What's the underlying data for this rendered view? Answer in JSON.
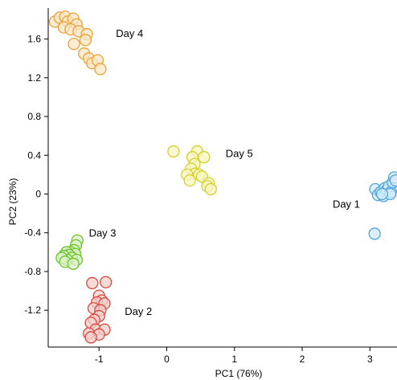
{
  "chart_data": {
    "type": "scatter",
    "title": "",
    "xlabel": "PC1 (76%)",
    "ylabel": "PC2 (23%)",
    "xlim": [
      -1.75,
      3.4
    ],
    "ylim": [
      -1.58,
      1.92
    ],
    "xticks": [
      -1,
      0,
      1,
      2,
      3
    ],
    "yticks": [
      1.6,
      1.2,
      0.8,
      0.4,
      0,
      -0.4,
      -0.8,
      -1.2
    ],
    "grid": false,
    "series": [
      {
        "name": "Day 4",
        "color": "#E8A33A",
        "fill": "#FBE6C4",
        "points": [
          [
            -1.65,
            1.78
          ],
          [
            -1.58,
            1.82
          ],
          [
            -1.5,
            1.83
          ],
          [
            -1.46,
            1.78
          ],
          [
            -1.38,
            1.81
          ],
          [
            -1.33,
            1.75
          ],
          [
            -1.52,
            1.72
          ],
          [
            -1.42,
            1.7
          ],
          [
            -1.3,
            1.68
          ],
          [
            -1.18,
            1.65
          ],
          [
            -1.2,
            1.59
          ],
          [
            -1.37,
            1.55
          ],
          [
            -1.22,
            1.45
          ],
          [
            -1.15,
            1.4
          ],
          [
            -1.1,
            1.35
          ],
          [
            -1.02,
            1.38
          ],
          [
            -0.98,
            1.29
          ]
        ]
      },
      {
        "name": "Day 5",
        "color": "#D4D030",
        "fill": "#F7F5C2",
        "points": [
          [
            0.1,
            0.44
          ],
          [
            0.45,
            0.44
          ],
          [
            0.55,
            0.38
          ],
          [
            0.38,
            0.38
          ],
          [
            0.41,
            0.31
          ],
          [
            0.36,
            0.26
          ],
          [
            0.42,
            0.21
          ],
          [
            0.3,
            0.2
          ],
          [
            0.48,
            0.2
          ],
          [
            0.52,
            0.18
          ],
          [
            0.34,
            0.14
          ],
          [
            0.62,
            0.11
          ],
          [
            0.6,
            0.08
          ],
          [
            0.65,
            0.05
          ]
        ]
      },
      {
        "name": "Day 1",
        "color": "#4FA6DE",
        "fill": "#D3EAF8",
        "points": [
          [
            3.07,
            -0.41
          ],
          [
            3.08,
            0.05
          ],
          [
            3.12,
            -0.01
          ],
          [
            3.16,
            0.02
          ],
          [
            3.2,
            -0.02
          ],
          [
            3.22,
            0.06
          ],
          [
            3.25,
            0.04
          ],
          [
            3.28,
            0.08
          ],
          [
            3.31,
            0.02
          ],
          [
            3.34,
            0.12
          ],
          [
            3.36,
            0.17
          ],
          [
            3.38,
            0.14
          ],
          [
            3.3,
            0.0
          ],
          [
            3.18,
            0.0
          ]
        ]
      },
      {
        "name": "Day 3",
        "color": "#6CC42A",
        "fill": "#DDF2CC",
        "points": [
          [
            -1.32,
            -0.48
          ],
          [
            -1.34,
            -0.53
          ],
          [
            -1.37,
            -0.58
          ],
          [
            -1.42,
            -0.6
          ],
          [
            -1.48,
            -0.6
          ],
          [
            -1.35,
            -0.62
          ],
          [
            -1.44,
            -0.63
          ],
          [
            -1.52,
            -0.64
          ],
          [
            -1.4,
            -0.66
          ],
          [
            -1.33,
            -0.68
          ],
          [
            -1.47,
            -0.68
          ],
          [
            -1.55,
            -0.66
          ],
          [
            -1.5,
            -0.7
          ],
          [
            -1.38,
            -0.72
          ]
        ]
      },
      {
        "name": "Day 2",
        "color": "#D9483C",
        "fill": "#F6CFCB",
        "points": [
          [
            -1.1,
            -0.92
          ],
          [
            -0.9,
            -0.91
          ],
          [
            -1.0,
            -1.05
          ],
          [
            -0.96,
            -1.1
          ],
          [
            -1.03,
            -1.12
          ],
          [
            -0.92,
            -1.13
          ],
          [
            -1.08,
            -1.18
          ],
          [
            -0.98,
            -1.2
          ],
          [
            -1.0,
            -1.26
          ],
          [
            -1.07,
            -1.3
          ],
          [
            -1.12,
            -1.33
          ],
          [
            -1.05,
            -1.4
          ],
          [
            -0.92,
            -1.4
          ],
          [
            -1.15,
            -1.44
          ],
          [
            -1.0,
            -1.45
          ],
          [
            -1.12,
            -1.48
          ]
        ]
      }
    ],
    "annotations": [
      {
        "text": "Day 4",
        "x": -0.75,
        "y": 1.62
      },
      {
        "text": "Day 5",
        "x": 0.87,
        "y": 0.38
      },
      {
        "text": "Day 1",
        "x": 2.45,
        "y": -0.14
      },
      {
        "text": "Day 3",
        "x": -1.15,
        "y": -0.44
      },
      {
        "text": "Day 2",
        "x": -0.62,
        "y": -1.25
      }
    ]
  }
}
